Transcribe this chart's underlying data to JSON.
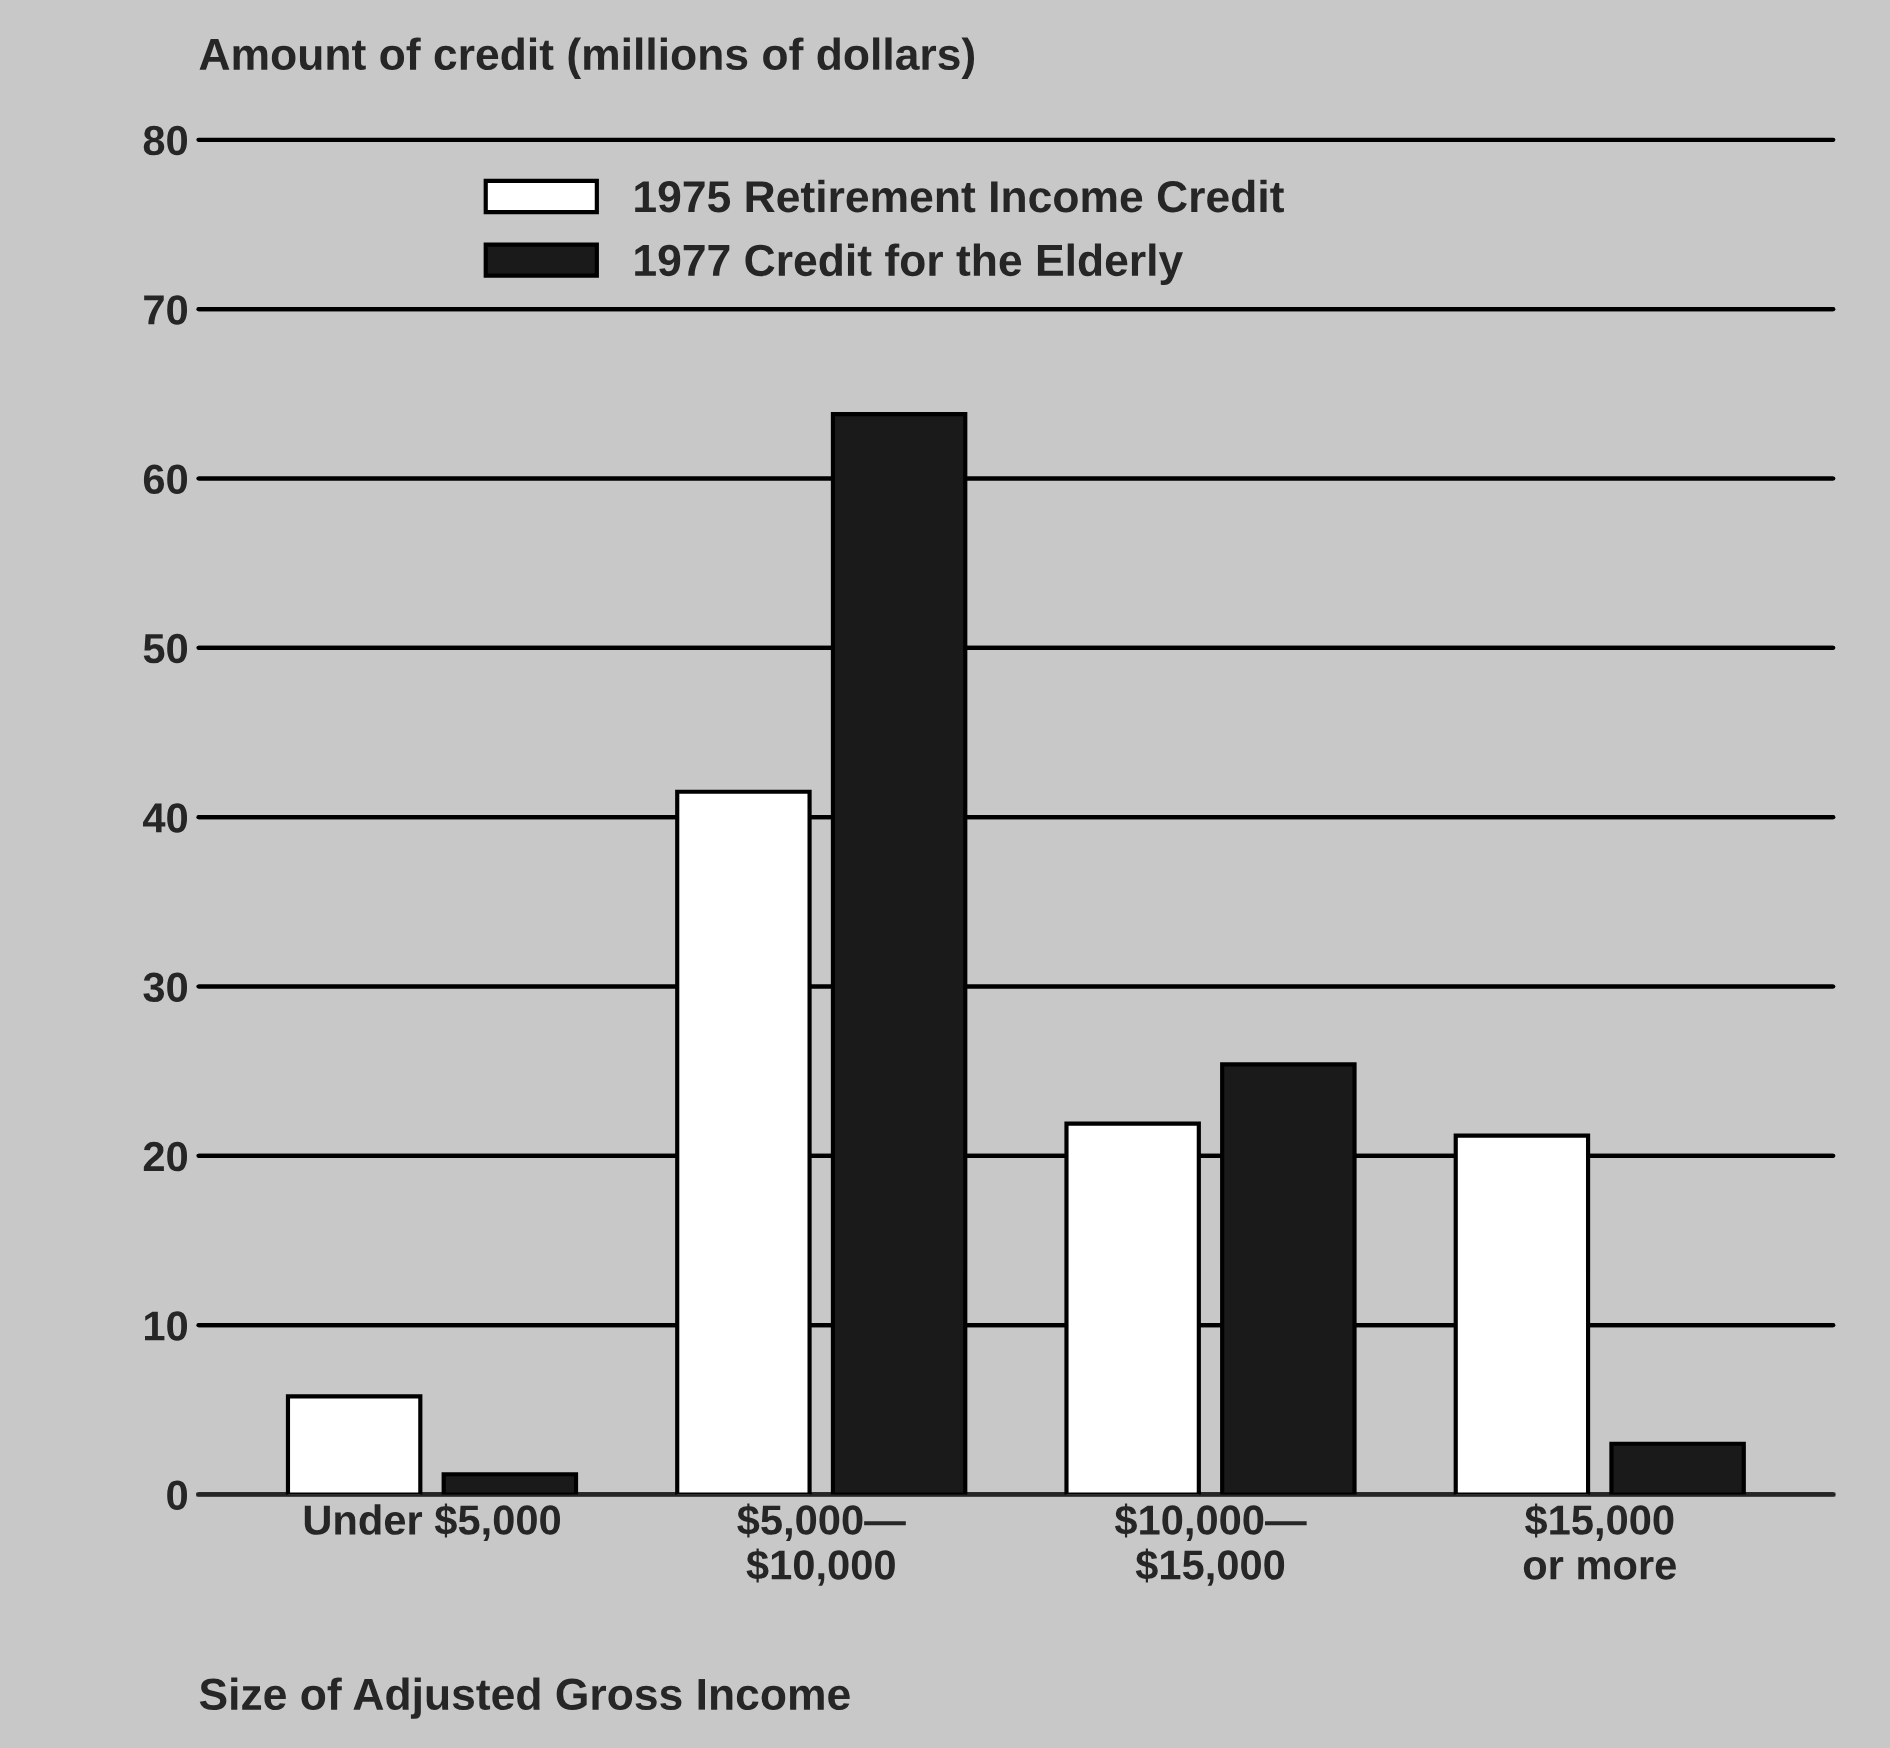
{
  "chart_data": {
    "type": "bar",
    "ylabel": "Amount of credit (millions of dollars)",
    "xlabel": "Size of Adjusted Gross Income",
    "categories": [
      "Under $5,000",
      "$5,000—\n$10,000",
      "$10,000—\n$15,000",
      "$15,000\nor more"
    ],
    "series": [
      {
        "name": "1975 Retirement Income Credit",
        "color": "#ffffff",
        "values": [
          5.8,
          41.5,
          21.9,
          21.2
        ]
      },
      {
        "name": "1977 Credit for the Elderly",
        "color": "#1a1a1a",
        "values": [
          1.2,
          63.8,
          25.4,
          3.0
        ]
      }
    ],
    "ylim": [
      0,
      80
    ],
    "yticks": [
      0,
      10,
      20,
      30,
      40,
      50,
      60,
      70,
      80
    ],
    "grid": "y",
    "legend": "top"
  }
}
